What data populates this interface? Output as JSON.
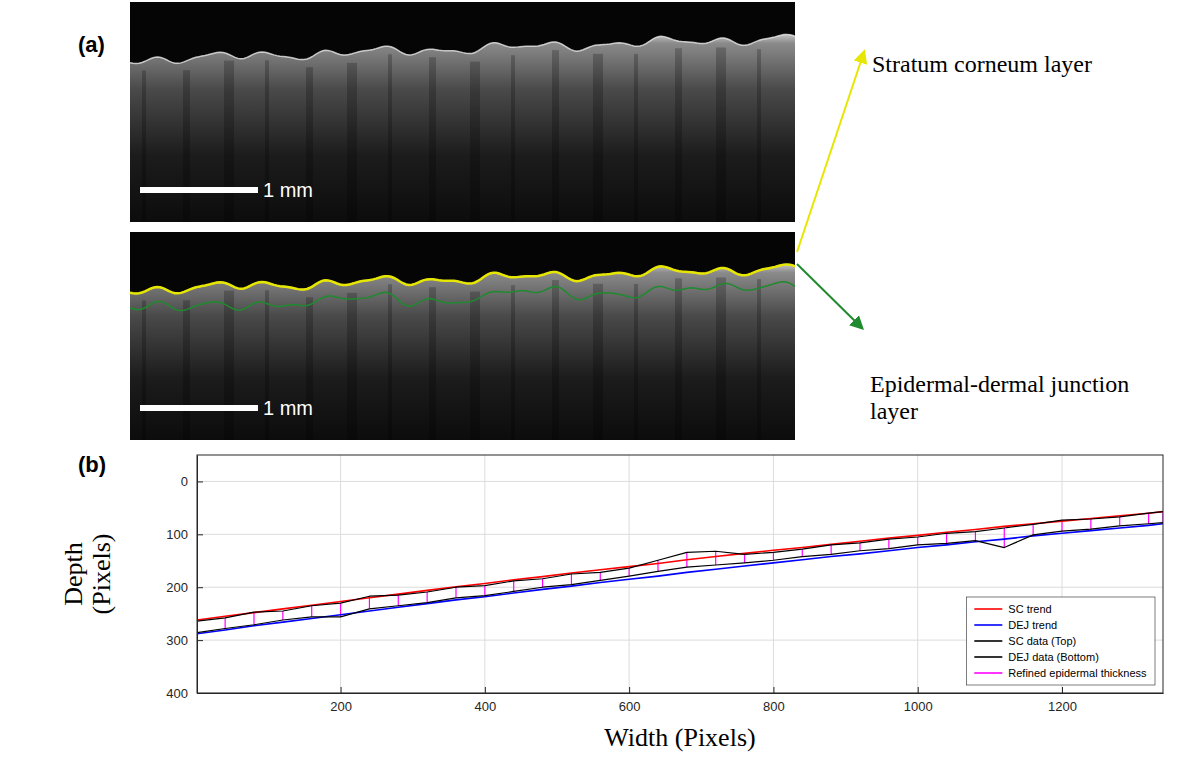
{
  "panel_labels": [
    "(a)",
    "(b)"
  ],
  "image_panel": {
    "scale_bars": [
      "1 mm",
      "1 mm"
    ],
    "annotations": [
      {
        "text": "Stratum corneum layer",
        "color": "#e6e600"
      },
      {
        "text": "Epidermal-dermal junction layer",
        "color": "#1f8a2e"
      }
    ]
  },
  "chart_data": {
    "type": "line",
    "x_label": "Width (Pixels)",
    "y_label": "Depth (Pixels)",
    "xlim": [
      1,
      1340
    ],
    "xticks": [
      200,
      400,
      600,
      800,
      1000,
      1200
    ],
    "ylim": [
      400,
      -50
    ],
    "yticks": [
      0,
      100,
      200,
      300,
      400
    ],
    "grid": true,
    "legend": "lower right",
    "x": [
      1,
      40,
      80,
      120,
      160,
      200,
      240,
      280,
      320,
      360,
      400,
      440,
      480,
      520,
      560,
      600,
      640,
      680,
      720,
      760,
      800,
      840,
      880,
      920,
      960,
      1000,
      1040,
      1080,
      1120,
      1160,
      1200,
      1240,
      1280,
      1320,
      1340
    ],
    "series": [
      {
        "name": "SC trend",
        "color": "#ff0000",
        "type": "line",
        "values": [
          262,
          255,
          248,
          241,
          234,
          227,
          220,
          213,
          206,
          199,
          193,
          186,
          180,
          173,
          167,
          161,
          155,
          148,
          142,
          136,
          130,
          125,
          119,
          113,
          107,
          102,
          96,
          91,
          85,
          80,
          75,
          70,
          65,
          60,
          57
        ]
      },
      {
        "name": "DEJ trend",
        "color": "#0000ff",
        "type": "line",
        "values": [
          288,
          281,
          273,
          266,
          259,
          252,
          245,
          238,
          231,
          224,
          218,
          211,
          204,
          198,
          191,
          185,
          179,
          172,
          166,
          160,
          154,
          148,
          142,
          137,
          131,
          125,
          120,
          114,
          109,
          103,
          98,
          93,
          88,
          83,
          80
        ]
      },
      {
        "name": "SC data (Top)",
        "color": "#000000",
        "type": "line",
        "values": [
          264,
          258,
          247,
          245,
          235,
          230,
          217,
          215,
          209,
          200,
          197,
          188,
          184,
          175,
          172,
          164,
          149,
          134,
          132,
          138,
          134,
          128,
          120,
          116,
          109,
          105,
          98,
          95,
          88,
          81,
          73,
          71,
          67,
          60,
          57
        ]
      },
      {
        "name": "DEJ data (Bottom)",
        "color": "#000000",
        "type": "line",
        "values": [
          286,
          278,
          271,
          262,
          256,
          256,
          241,
          235,
          229,
          220,
          216,
          208,
          200,
          195,
          187,
          179,
          170,
          162,
          158,
          154,
          149,
          142,
          138,
          131,
          127,
          120,
          117,
          112,
          125,
          101,
          94,
          90,
          84,
          80,
          78
        ]
      },
      {
        "name": "Refined epidermal thickness",
        "color": "#ff00ff",
        "type": "vline",
        "low": [
          264,
          258,
          247,
          245,
          235,
          230,
          217,
          215,
          209,
          200,
          197,
          188,
          184,
          175,
          172,
          164,
          149,
          134,
          132,
          138,
          134,
          128,
          120,
          116,
          109,
          105,
          98,
          95,
          88,
          81,
          73,
          71,
          67,
          60,
          57
        ],
        "high": [
          286,
          278,
          271,
          262,
          256,
          256,
          241,
          235,
          229,
          220,
          216,
          208,
          200,
          195,
          187,
          179,
          170,
          162,
          158,
          154,
          149,
          142,
          138,
          131,
          127,
          120,
          117,
          112,
          125,
          101,
          94,
          90,
          84,
          80,
          78
        ]
      }
    ]
  }
}
